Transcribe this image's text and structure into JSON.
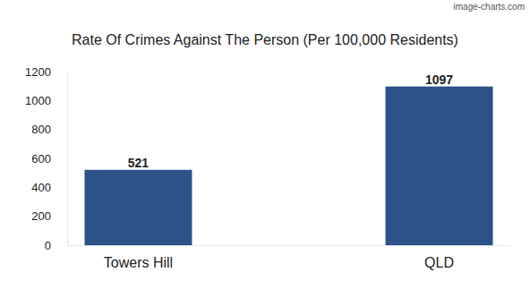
{
  "chart_data": {
    "type": "bar",
    "title": "Rate Of Crimes Against The Person (Per 100,000 Residents)",
    "annotation": "image-charts.com",
    "categories": [
      "Towers Hill",
      "QLD"
    ],
    "values": [
      521,
      1097
    ],
    "color": "#2b5289",
    "ylim": [
      0,
      1200
    ],
    "yticks": [
      0,
      200,
      400,
      600,
      800,
      1000,
      1200
    ],
    "grid": false,
    "data_labels": true
  }
}
